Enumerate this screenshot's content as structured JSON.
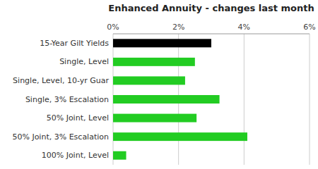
{
  "chart_data": {
    "type": "bar",
    "orientation": "horizontal",
    "title": "Enhanced Annuity - changes last month",
    "categories": [
      "15-Year Gilt Yields",
      "Single, Level",
      "Single, Level, 10-yr Guar",
      "Single, 3% Escalation",
      "50% Joint, Level",
      "50% Joint, 3% Escalation",
      "100% Joint, Level"
    ],
    "values": [
      3.0,
      2.5,
      2.2,
      3.25,
      2.55,
      4.1,
      0.4
    ],
    "colors": [
      "#000000",
      "#22cc22",
      "#22cc22",
      "#22cc22",
      "#22cc22",
      "#22cc22",
      "#22cc22"
    ],
    "xlim": [
      0,
      6
    ],
    "xticks": [
      {
        "value": 0,
        "label": "0%"
      },
      {
        "value": 2,
        "label": "2%"
      },
      {
        "value": 4,
        "label": "4%"
      },
      {
        "value": 6,
        "label": "6%"
      }
    ],
    "grid": true
  }
}
